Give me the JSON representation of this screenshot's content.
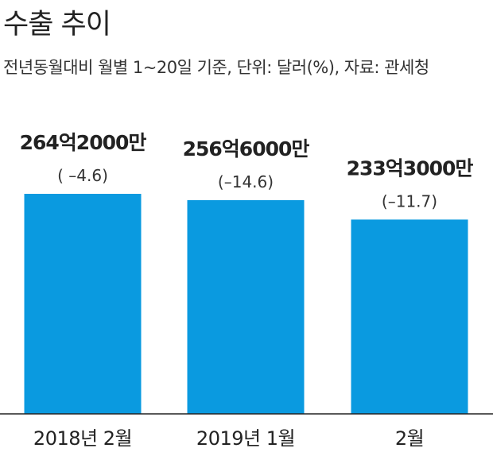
{
  "chart_data": {
    "type": "bar",
    "title": "수출 추이",
    "subtitle": "전년동월대비 월별 1~20일 기준, 단위: 달러(%), 자료: 관세청",
    "categories": [
      "2018년 2월",
      "2019년 1월",
      "2월"
    ],
    "values": [
      26420000000,
      25660000000,
      23330000000
    ],
    "value_labels": [
      "264억2000만",
      "256억6000만",
      "233억3000만"
    ],
    "change_pct": [
      -4.6,
      -14.6,
      -11.7
    ],
    "change_labels": [
      "( –4.6)",
      "(–14.6)",
      "(–11.7)"
    ],
    "xlabel": "",
    "ylabel": "",
    "grid": false,
    "bar_color": "#0a9ae0"
  }
}
